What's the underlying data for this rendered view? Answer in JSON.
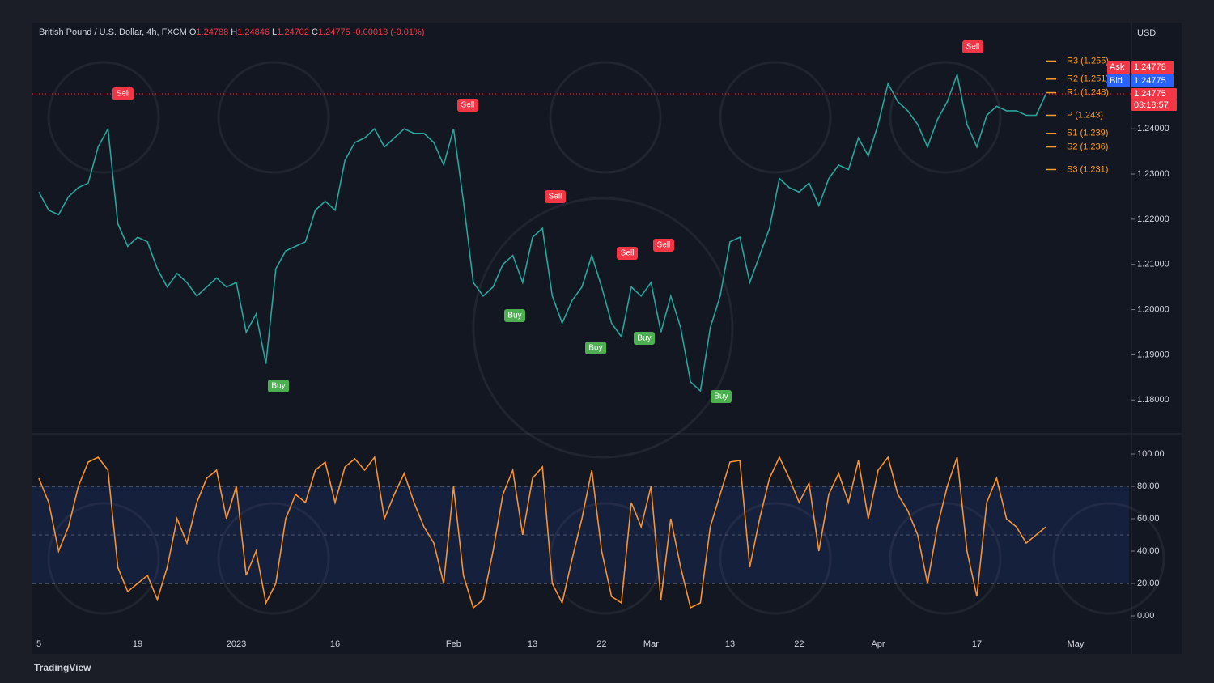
{
  "header": {
    "symbol": "British Pound / U.S. Dollar, 4h, FXCM",
    "o_label": "O",
    "open": "1.24788",
    "h_label": "H",
    "high": "1.24846",
    "l_label": "L",
    "low": "1.24702",
    "c_label": "C",
    "close": "1.24775",
    "change": "-0.00013 (-0.01%)"
  },
  "currency": "USD",
  "price_tags": {
    "ask_label": "Ask",
    "ask": "1.24778",
    "bid_label": "Bid",
    "bid": "1.24775",
    "last": "1.24775",
    "countdown": "03:18:57"
  },
  "pivots": [
    {
      "label": "R3 (1.255)",
      "value": 1.255
    },
    {
      "label": "R2 (1.251)",
      "value": 1.251
    },
    {
      "label": "R1 (1.248)",
      "value": 1.248
    },
    {
      "label": "P (1.243)",
      "value": 1.243
    },
    {
      "label": "S1 (1.239)",
      "value": 1.239
    },
    {
      "label": "S2 (1.236)",
      "value": 1.236
    },
    {
      "label": "S3 (1.231)",
      "value": 1.231
    }
  ],
  "annotations": [
    "Sell",
    "Sell",
    "Sell",
    "Sell",
    "Sell",
    "Sell",
    "Buy",
    "Buy",
    "Buy",
    "Buy",
    "Buy"
  ],
  "footer": "TradingView",
  "chart_data": [
    {
      "type": "line",
      "categories": [
        "5",
        null,
        null,
        null,
        null,
        null,
        null,
        null,
        null,
        null,
        "19",
        null,
        null,
        null,
        null,
        null,
        null,
        null,
        null,
        null,
        "2023",
        null,
        null,
        null,
        null,
        null,
        null,
        null,
        null,
        null,
        "16",
        null,
        null,
        null,
        null,
        null,
        null,
        null,
        null,
        null,
        null,
        null,
        "Feb",
        null,
        null,
        null,
        null,
        null,
        null,
        null,
        "13",
        null,
        null,
        null,
        null,
        null,
        null,
        "22",
        null,
        null,
        null,
        null,
        "Mar",
        null,
        null,
        null,
        null,
        null,
        null,
        null,
        "13",
        null,
        null,
        null,
        null,
        null,
        null,
        "22",
        null,
        null,
        null,
        null,
        null,
        null,
        null,
        "Apr",
        null,
        null,
        null,
        null,
        null,
        null,
        null,
        null,
        null,
        "17",
        null,
        null,
        null,
        null,
        null,
        null,
        null,
        null,
        null,
        "May"
      ],
      "series": [
        {
          "color": "#26a69a",
          "values": [
            1.226,
            1.222,
            1.221,
            1.225,
            1.227,
            1.228,
            1.236,
            1.24,
            1.219,
            1.214,
            1.216,
            1.215,
            1.209,
            1.205,
            1.208,
            1.206,
            1.203,
            1.205,
            1.207,
            1.205,
            1.206,
            1.195,
            1.199,
            1.188,
            1.209,
            1.213,
            1.214,
            1.215,
            1.222,
            1.224,
            1.222,
            1.233,
            1.237,
            1.238,
            1.24,
            1.236,
            1.238,
            1.24,
            1.239,
            1.239,
            1.237,
            1.232,
            1.24,
            1.224,
            1.206,
            1.203,
            1.205,
            1.21,
            1.212,
            1.206,
            1.216,
            1.218,
            1.203,
            1.197,
            1.202,
            1.205,
            1.212,
            1.205,
            1.197,
            1.194,
            1.205,
            1.203,
            1.206,
            1.195,
            1.203,
            1.196,
            1.184,
            1.182,
            1.196,
            1.203,
            1.215,
            1.216,
            1.206,
            1.212,
            1.218,
            1.229,
            1.227,
            1.226,
            1.228,
            1.223,
            1.229,
            1.232,
            1.231,
            1.238,
            1.234,
            1.241,
            1.25,
            1.246,
            1.244,
            1.241,
            1.236,
            1.242,
            1.246,
            1.252,
            1.241,
            1.236,
            1.243,
            1.245,
            1.244,
            1.244,
            1.243,
            1.243,
            1.24775,
            null,
            null,
            null
          ]
        }
      ],
      "ylim": [
        1.1727,
        1.2635
      ],
      "yticks": [
        {
          "value": 1.18,
          "label": "1.18000"
        },
        {
          "value": 1.19,
          "label": "1.19000"
        },
        {
          "value": 1.2,
          "label": "1.20000"
        },
        {
          "value": 1.21,
          "label": "1.21000"
        },
        {
          "value": 1.22,
          "label": "1.22000"
        },
        {
          "value": 1.23,
          "label": "1.23000"
        },
        {
          "value": 1.24,
          "label": "1.24000"
        }
      ]
    },
    {
      "type": "line",
      "series": [
        {
          "color": "#f7922f",
          "values": [
            85,
            70,
            40,
            55,
            80,
            95,
            98,
            90,
            30,
            15,
            20,
            25,
            10,
            30,
            60,
            45,
            70,
            85,
            90,
            60,
            80,
            25,
            40,
            8,
            20,
            60,
            75,
            70,
            90,
            95,
            70,
            92,
            97,
            90,
            98,
            60,
            75,
            88,
            70,
            55,
            45,
            20,
            80,
            25,
            5,
            10,
            40,
            75,
            90,
            50,
            85,
            92,
            20,
            8,
            35,
            60,
            90,
            40,
            12,
            8,
            70,
            55,
            80,
            10,
            60,
            30,
            5,
            8,
            55,
            75,
            95,
            96,
            30,
            60,
            85,
            98,
            85,
            70,
            82,
            40,
            75,
            88,
            70,
            96,
            60,
            90,
            98,
            75,
            65,
            50,
            20,
            55,
            80,
            98,
            40,
            12,
            70,
            85,
            60,
            55,
            45,
            50,
            55,
            null,
            null,
            null
          ]
        }
      ],
      "ylim": [
        -9.5,
        111.5
      ],
      "yticks": [
        {
          "value": 0,
          "label": "0.00"
        },
        {
          "value": 20,
          "label": "20.00"
        },
        {
          "value": 40,
          "label": "40.00"
        },
        {
          "value": 60,
          "label": "60.00"
        },
        {
          "value": 80,
          "label": "80.00"
        },
        {
          "value": 100,
          "label": "100.00"
        }
      ],
      "band": [
        20,
        80
      ],
      "midline": 50
    }
  ]
}
